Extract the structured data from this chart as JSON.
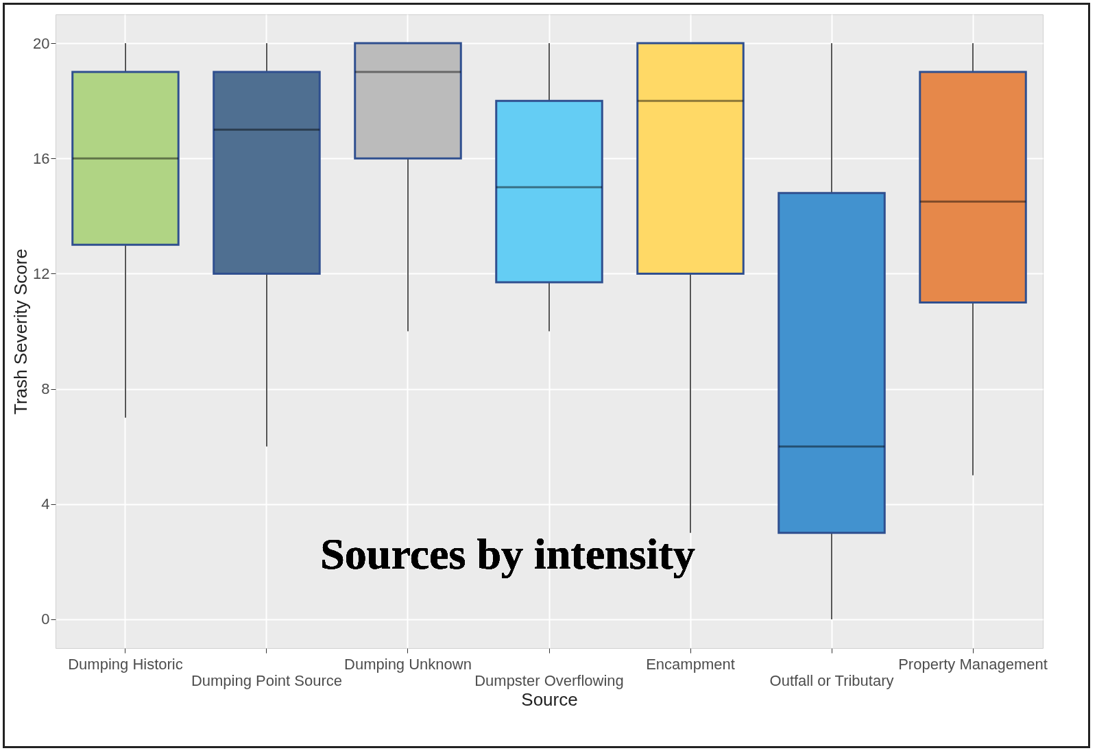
{
  "chart_data": {
    "type": "box",
    "xlabel": "Source",
    "ylabel": "Trash Severity Score",
    "categories": [
      "Dumping Historic",
      "Dumping Point Source",
      "Dumping Unknown",
      "Dumpster Overflowing",
      "Encampment",
      "Outfall or Tributary",
      "Property Management"
    ],
    "colors": [
      "#b0d484",
      "#4f6f91",
      "#bbbbbb",
      "#64cdf4",
      "#ffd966",
      "#4292cf",
      "#e6884a"
    ],
    "boxes": [
      {
        "low": 7,
        "q1": 13,
        "median": 16,
        "q3": 19,
        "high": 20
      },
      {
        "low": 6,
        "q1": 12,
        "median": 17,
        "q3": 19,
        "high": 20
      },
      {
        "low": 10,
        "q1": 16,
        "median": 19,
        "q3": 20,
        "high": 20
      },
      {
        "low": 10,
        "q1": 11.7,
        "median": 15,
        "q3": 18,
        "high": 20
      },
      {
        "low": 3,
        "q1": 12,
        "median": 18,
        "q3": 20,
        "high": 20
      },
      {
        "low": 0,
        "q1": 3,
        "median": 6,
        "q3": 14.8,
        "high": 20
      },
      {
        "low": 5,
        "q1": 11,
        "median": 14.5,
        "q3": 19,
        "high": 20
      }
    ],
    "ylim": [
      -1,
      21
    ],
    "yticks": [
      0,
      4,
      8,
      12,
      16,
      20
    ],
    "grid": true,
    "annotations": [
      "Sources by intensity"
    ]
  }
}
